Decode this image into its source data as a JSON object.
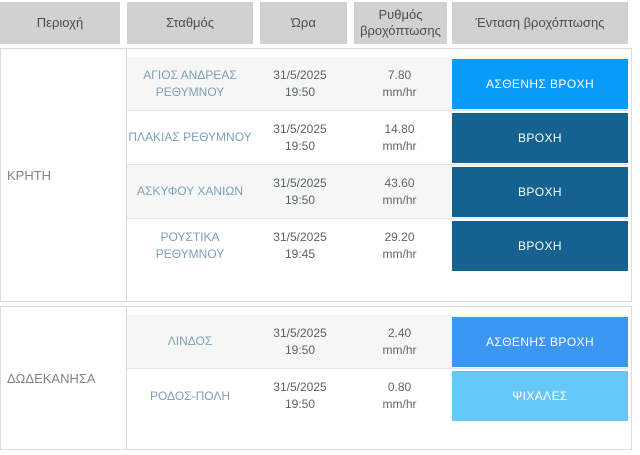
{
  "header": {
    "columns": [
      "Περιοχή",
      "Σταθμός",
      "Ώρα",
      "Ρυθμός βροχόπτωσης",
      "Ένταση βροχόπτωσης"
    ]
  },
  "sections": [
    {
      "region": "ΚΡΗΤΗ",
      "rows": [
        {
          "station": "ΑΓΙΟΣ ΑΝΔΡΕΑΣ ΡΕΘΥΜΝΟΥ",
          "date": "31/5/2025",
          "time": "19:50",
          "rate": "7.80",
          "unit": "mm/hr",
          "intensity": "ΑΣΘΕΝΗΣ ΒΡΟΧΗ",
          "intensity_color": "#089cf8"
        },
        {
          "station": "ΠΛΑΚΙΑΣ ΡΕΘΥΜΝΟΥ",
          "date": "31/5/2025",
          "time": "19:50",
          "rate": "14.80",
          "unit": "mm/hr",
          "intensity": "ΒΡΟΧΗ",
          "intensity_color": "#156190"
        },
        {
          "station": "ΑΣΚΥΦΟΥ ΧΑΝΙΩΝ",
          "date": "31/5/2025",
          "time": "19:50",
          "rate": "43.60",
          "unit": "mm/hr",
          "intensity": "ΒΡΟΧΗ",
          "intensity_color": "#156190"
        },
        {
          "station": "ΡΟΥΣΤΙΚΑ ΡΕΘΥΜΝΟΥ",
          "date": "31/5/2025",
          "time": "19:45",
          "rate": "29.20",
          "unit": "mm/hr",
          "intensity": "ΒΡΟΧΗ",
          "intensity_color": "#156190"
        }
      ]
    },
    {
      "region": "ΔΩΔΕΚΑΝΗΣΑ",
      "rows": [
        {
          "station": "ΛΙΝΔΟΣ",
          "date": "31/5/2025",
          "time": "19:50",
          "rate": "2.40",
          "unit": "mm/hr",
          "intensity": "ΑΣΘΕΝΗΣ ΒΡΟΧΗ",
          "intensity_color": "#3b97f2"
        },
        {
          "station": "ΡΟΔΟΣ-ΠΟΛΗ",
          "date": "31/5/2025",
          "time": "19:50",
          "rate": "0.80",
          "unit": "mm/hr",
          "intensity": "ΨΙΧΑΛΕΣ",
          "intensity_color": "#66c8f7"
        }
      ]
    }
  ],
  "colors": {
    "header_bg": "#d1d1d1",
    "header_text": "#4d4d4d",
    "station_link": "#7da0b9",
    "region_text": "#82828c",
    "row_tint": "#f6f6f6",
    "badge_light_rain_bright": "#089cf8",
    "badge_rain": "#156190",
    "badge_light_rain": "#3b97f2",
    "badge_drizzle": "#66c8f7"
  }
}
